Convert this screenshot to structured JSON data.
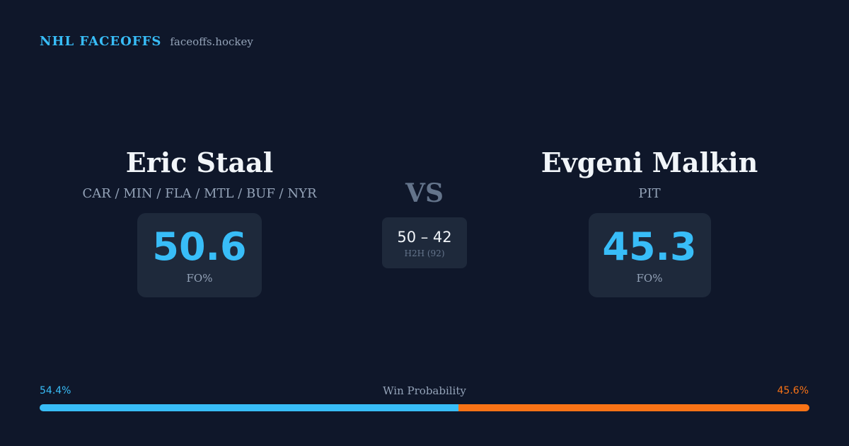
{
  "brand": {
    "name": "NHL FACEOFFS",
    "url": "faceoffs.hockey"
  },
  "player_left": {
    "name": "Eric Staal",
    "teams": "CAR / MIN / FLA / MTL / BUF / NYR",
    "fo_pct": "50.6",
    "fo_label": "FO%"
  },
  "vs_label": "VS",
  "head_to_head": {
    "score": "50 – 42",
    "label": "H2H (92)"
  },
  "player_right": {
    "name": "Evgeni Malkin",
    "teams": "PIT",
    "fo_pct": "45.3",
    "fo_label": "FO%"
  },
  "win_probability": {
    "title": "Win Probability",
    "left_label": "54.4%",
    "right_label": "45.6%",
    "left_value": 54.4,
    "right_value": 45.6
  },
  "colors": {
    "background": "#0f172a",
    "card": "#1e293b",
    "accent_left": "#38bdf8",
    "accent_right": "#f97316",
    "muted": "#94a3b8"
  }
}
